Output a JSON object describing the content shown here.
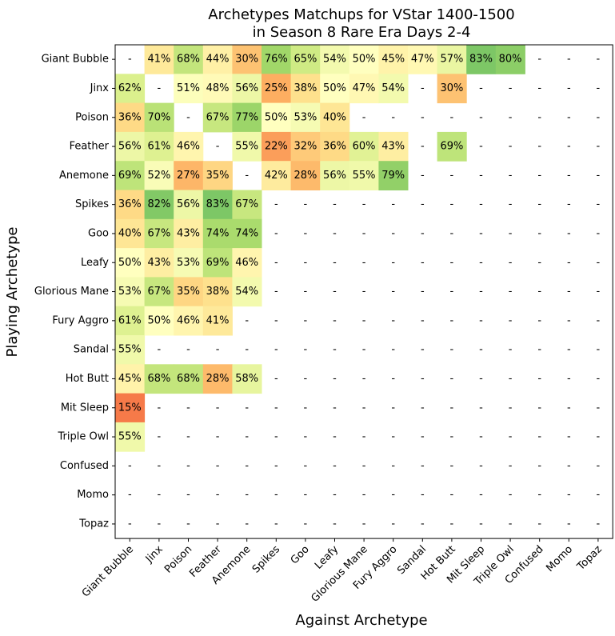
{
  "chart_data": {
    "type": "heatmap",
    "title_line1": "Archetypes Matchups for VStar 1400-1500",
    "title_line2": "in Season 8 Rare Era Days 2-4",
    "xlabel": "Against Archetype",
    "ylabel": "Playing Archetype",
    "categories": [
      "Giant Bubble",
      "Jinx",
      "Poison",
      "Feather",
      "Anemone",
      "Spikes",
      "Goo",
      "Leafy",
      "Glorious Mane",
      "Fury Aggro",
      "Sandal",
      "Hot Butt",
      "Mit Sleep",
      "Triple Owl",
      "Confused",
      "Momo",
      "Topaz"
    ],
    "values": [
      [
        null,
        41,
        68,
        44,
        30,
        76,
        65,
        54,
        50,
        45,
        47,
        57,
        83,
        80,
        null,
        null,
        null
      ],
      [
        62,
        null,
        51,
        48,
        56,
        25,
        38,
        50,
        47,
        54,
        null,
        30,
        null,
        null,
        null,
        null,
        null
      ],
      [
        36,
        70,
        null,
        67,
        77,
        50,
        53,
        40,
        null,
        null,
        null,
        null,
        null,
        null,
        null,
        null,
        null
      ],
      [
        56,
        61,
        46,
        null,
        55,
        22,
        32,
        36,
        60,
        43,
        null,
        69,
        null,
        null,
        null,
        null,
        null
      ],
      [
        69,
        52,
        27,
        35,
        null,
        42,
        28,
        56,
        55,
        79,
        null,
        null,
        null,
        null,
        null,
        null,
        null
      ],
      [
        36,
        82,
        56,
        83,
        67,
        null,
        null,
        null,
        null,
        null,
        null,
        null,
        null,
        null,
        null,
        null,
        null
      ],
      [
        40,
        67,
        43,
        74,
        74,
        null,
        null,
        null,
        null,
        null,
        null,
        null,
        null,
        null,
        null,
        null,
        null
      ],
      [
        50,
        43,
        53,
        69,
        46,
        null,
        null,
        null,
        null,
        null,
        null,
        null,
        null,
        null,
        null,
        null,
        null
      ],
      [
        53,
        67,
        35,
        38,
        54,
        null,
        null,
        null,
        null,
        null,
        null,
        null,
        null,
        null,
        null,
        null,
        null
      ],
      [
        61,
        50,
        46,
        41,
        null,
        null,
        null,
        null,
        null,
        null,
        null,
        null,
        null,
        null,
        null,
        null,
        null
      ],
      [
        55,
        null,
        null,
        null,
        null,
        null,
        null,
        null,
        null,
        null,
        null,
        null,
        null,
        null,
        null,
        null,
        null
      ],
      [
        45,
        68,
        68,
        28,
        58,
        null,
        null,
        null,
        null,
        null,
        null,
        null,
        null,
        null,
        null,
        null,
        null
      ],
      [
        15,
        null,
        null,
        null,
        null,
        null,
        null,
        null,
        null,
        null,
        null,
        null,
        null,
        null,
        null,
        null,
        null
      ],
      [
        55,
        null,
        null,
        null,
        null,
        null,
        null,
        null,
        null,
        null,
        null,
        null,
        null,
        null,
        null,
        null,
        null
      ],
      [
        null,
        null,
        null,
        null,
        null,
        null,
        null,
        null,
        null,
        null,
        null,
        null,
        null,
        null,
        null,
        null,
        null
      ],
      [
        null,
        null,
        null,
        null,
        null,
        null,
        null,
        null,
        null,
        null,
        null,
        null,
        null,
        null,
        null,
        null,
        null
      ],
      [
        null,
        null,
        null,
        null,
        null,
        null,
        null,
        null,
        null,
        null,
        null,
        null,
        null,
        null,
        null,
        null,
        null
      ]
    ],
    "missing_label": "-",
    "value_suffix": "%",
    "colormap": "RdYlGn",
    "color_range": [
      0,
      100
    ],
    "colors": {
      "stops": [
        "#d73027",
        "#f46d43",
        "#fdae61",
        "#fee08b",
        "#ffffbf",
        "#d9ef8b",
        "#a6d96a",
        "#66bd63",
        "#1a9850"
      ]
    }
  }
}
